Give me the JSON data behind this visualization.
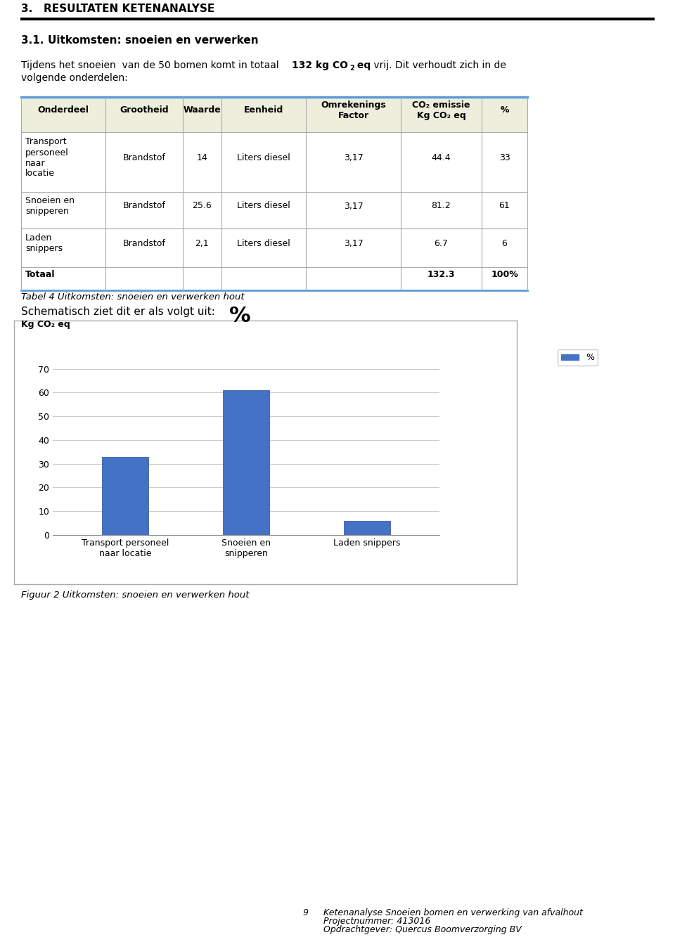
{
  "page_title": "3.",
  "page_title_text": "RESULTATEN KETENANALYSE",
  "section_title": "3.1.",
  "section_title_text": "Uitkomsten: snoeien en verwerken",
  "table_headers": [
    "Onderdeel",
    "Grootheid",
    "Waarde",
    "Eenheid",
    "Omrekenings\nFactor",
    "CO2 emissie\nKg CO2 eq",
    "%"
  ],
  "table_rows": [
    [
      "Transport\npersoneel\nnaar\nlocatie",
      "Brandstof",
      "14",
      "Liters diesel",
      "3,17",
      "44.4",
      "33"
    ],
    [
      "Snoeien en\nsnipperen",
      "Brandstof",
      "25.6",
      "Liters diesel",
      "3,17",
      "81.2",
      "61"
    ],
    [
      "Laden\nsnippers",
      "Brandstof",
      "2,1",
      "Liters diesel",
      "3,17",
      "6.7",
      "6"
    ],
    [
      "Totaal",
      "",
      "",
      "",
      "",
      "132.3",
      "100%"
    ]
  ],
  "table_caption": "Tabel 4 Uitkomsten: snoeien en verwerken hout",
  "chart_intro": "Schematisch ziet dit er als volgt uit:",
  "chart_ylabel_left": "Kg CO₂ eq",
  "chart_ylabel_right": "%",
  "bar_categories": [
    "Transport personeel\nnaar locatie",
    "Snoeien en\nsnipperen",
    "Laden snippers"
  ],
  "bar_values": [
    33,
    61,
    6
  ],
  "bar_color": "#4472C4",
  "yticks": [
    0,
    10,
    20,
    30,
    40,
    50,
    60,
    70
  ],
  "legend_label": "%",
  "chart_caption": "Figuur 2 Uitkomsten: snoeien en verwerken hout",
  "footer_page": "9",
  "footer_line1": "Ketenanalyse Snoeien bomen en verwerking van afvalhout",
  "footer_line2": "Projectnummer: 413016",
  "footer_line3": "Opdrachtgever: Quercus Boomverzorging BV",
  "bg_color": "#FFFFFF",
  "table_header_bg": "#EEEEDD",
  "table_border_top_color": "#5B9BD5",
  "table_border_color": "#AAAAAA"
}
